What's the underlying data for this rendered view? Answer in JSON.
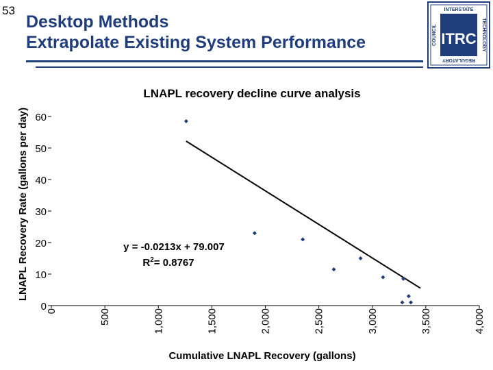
{
  "slide": {
    "number": "53",
    "title_line1": "Desktop Methods",
    "title_line2": "Extrapolate Existing System Performance"
  },
  "logo": {
    "main": "ITRC",
    "top": "INTERSTATE",
    "right": "TECHNOLOGY",
    "bottom": "REGULATORY",
    "left": "COUNCIL",
    "color": "#1f3d7a"
  },
  "chart_data": {
    "type": "scatter",
    "title": "LNAPL recovery decline curve analysis",
    "xlabel": "Cumulative LNAPL Recovery (gallons)",
    "ylabel": "LNAPL Recovery Rate (gallons per day)",
    "xlim": [
      0,
      4000
    ],
    "ylim": [
      0,
      60
    ],
    "x_ticks": [
      0,
      500,
      1000,
      1500,
      2000,
      2500,
      3000,
      3500,
      4000
    ],
    "x_tick_labels": [
      "0",
      "500",
      "1,000",
      "1,500",
      "2,000",
      "2,500",
      "3,000",
      "3,500",
      "4,000"
    ],
    "y_ticks": [
      0,
      10,
      20,
      30,
      40,
      50,
      60
    ],
    "y_tick_labels": [
      "0",
      "10",
      "20",
      "30",
      "40",
      "50",
      "60"
    ],
    "points": [
      {
        "x": 1260,
        "y": 58.5
      },
      {
        "x": 1900,
        "y": 23.0
      },
      {
        "x": 2350,
        "y": 21.0
      },
      {
        "x": 2640,
        "y": 11.5
      },
      {
        "x": 2890,
        "y": 15.0
      },
      {
        "x": 3100,
        "y": 9.0
      },
      {
        "x": 3290,
        "y": 8.5
      },
      {
        "x": 3340,
        "y": 3.0
      },
      {
        "x": 3280,
        "y": 1.0
      },
      {
        "x": 3360,
        "y": 1.0
      }
    ],
    "trendline": {
      "slope": -0.0213,
      "intercept": 79.007,
      "x_start": 1260,
      "x_end": 3450,
      "equation_label": "y = -0.0213x + 79.007",
      "r2_label": "R",
      "r2_sup": "2",
      "r2_value": "= 0.8767"
    },
    "marker_color": "#1f3d7a",
    "line_color": "#000000"
  }
}
